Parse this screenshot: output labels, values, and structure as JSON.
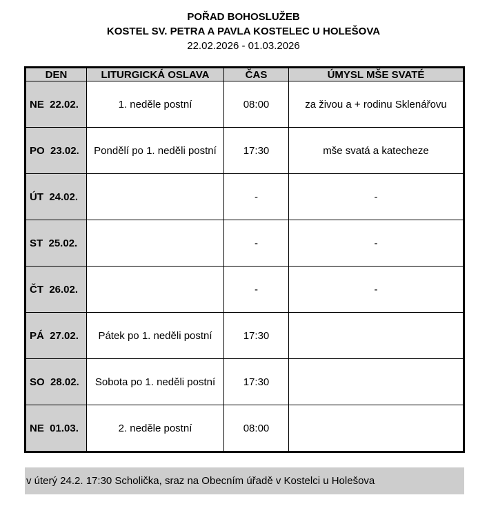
{
  "header": {
    "title": "POŘAD BOHOSLUŽEB",
    "subtitle": "KOSTEL SV. PETRA A PAVLA KOSTELEC U HOLEŠOVA",
    "dates": "22.02.2026 - 01.03.2026"
  },
  "table": {
    "columns": [
      "DEN",
      "LITURGICKÁ OSLAVA",
      "ČAS",
      "ÚMYSL MŠE SVATÉ"
    ],
    "rows": [
      {
        "day": "NE  22.02.",
        "celebration": "1. neděle postní",
        "time": "08:00",
        "intention": "za živou a + rodinu Sklenářovu"
      },
      {
        "day": "PO  23.02.",
        "celebration": "Pondělí po 1. neděli postní",
        "time": "17:30",
        "intention": "mše svatá a katecheze"
      },
      {
        "day": "ÚT  24.02.",
        "celebration": "",
        "time": "-",
        "intention": "-"
      },
      {
        "day": "ST  25.02.",
        "celebration": "",
        "time": "-",
        "intention": "-"
      },
      {
        "day": "ČT  26.02.",
        "celebration": "",
        "time": "-",
        "intention": "-"
      },
      {
        "day": "PÁ  27.02.",
        "celebration": "Pátek po 1. neděli postní",
        "time": "17:30",
        "intention": ""
      },
      {
        "day": "SO  28.02.",
        "celebration": "Sobota po 1. neděli postní",
        "time": "17:30",
        "intention": ""
      },
      {
        "day": "NE  01.03.",
        "celebration": "2. neděle postní",
        "time": "08:00",
        "intention": ""
      }
    ]
  },
  "note": "v úterý 24.2. 17:30 Scholička, sraz na Obecním úřadě v Kostelci u Holešova"
}
